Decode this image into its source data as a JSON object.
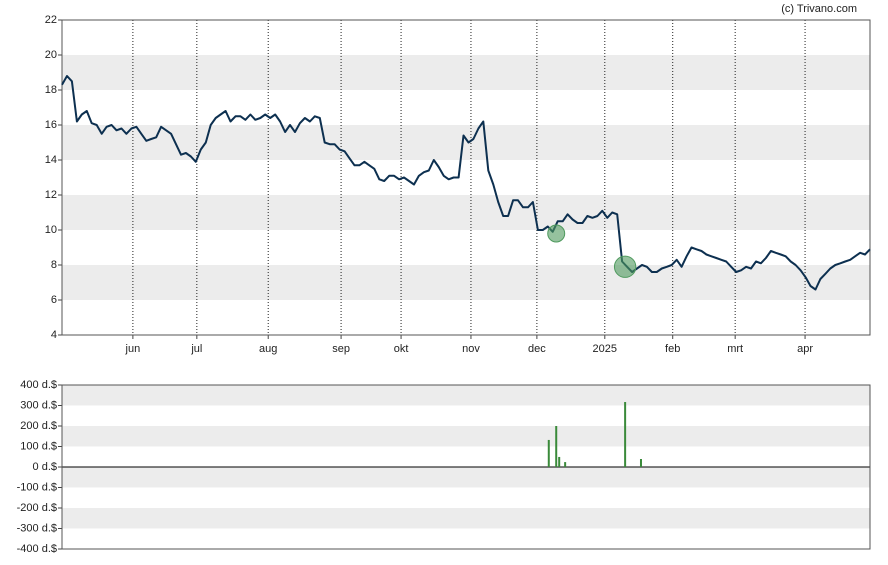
{
  "credit": "(c) Trivano.com",
  "chart_data": [
    {
      "type": "line",
      "color": "#0d3050",
      "grid": true,
      "values": [
        18.3,
        18.8,
        18.5,
        16.2,
        16.6,
        16.8,
        16.1,
        16.0,
        15.5,
        15.9,
        16.0,
        15.7,
        15.8,
        15.5,
        15.8,
        15.9,
        15.5,
        15.1,
        15.2,
        15.3,
        15.9,
        15.7,
        15.5,
        14.9,
        14.3,
        14.4,
        14.2,
        13.9,
        14.6,
        15.0,
        16.0,
        16.4,
        16.6,
        16.8,
        16.2,
        16.5,
        16.5,
        16.3,
        16.6,
        16.3,
        16.4,
        16.6,
        16.4,
        16.6,
        16.2,
        15.6,
        16.0,
        15.6,
        16.1,
        16.4,
        16.2,
        16.5,
        16.4,
        15.0,
        14.9,
        14.9,
        14.6,
        14.5,
        14.1,
        13.7,
        13.7,
        13.9,
        13.7,
        13.5,
        12.9,
        12.8,
        13.1,
        13.1,
        12.9,
        13.0,
        12.8,
        12.6,
        13.1,
        13.3,
        13.4,
        14.0,
        13.6,
        13.1,
        12.9,
        13.0,
        13.0,
        15.4,
        15.0,
        15.2,
        15.8,
        16.2,
        13.4,
        12.6,
        11.6,
        10.8,
        10.8,
        11.7,
        11.7,
        11.3,
        11.3,
        11.6,
        10.0,
        10.0,
        10.2,
        9.9,
        10.5,
        10.5,
        10.9,
        10.6,
        10.4,
        10.4,
        10.8,
        10.7,
        10.8,
        11.1,
        10.7,
        11.0,
        10.9,
        8.2,
        7.9,
        7.6,
        7.8,
        8.0,
        7.9,
        7.6,
        7.6,
        7.8,
        7.9,
        8.0,
        8.3,
        7.9,
        8.5,
        9.0,
        8.9,
        8.8,
        8.6,
        8.5,
        8.4,
        8.3,
        8.2,
        7.9,
        7.6,
        7.7,
        7.9,
        7.8,
        8.2,
        8.1,
        8.4,
        8.8,
        8.7,
        8.6,
        8.5,
        8.2,
        8.0,
        7.7,
        7.3,
        6.8,
        6.6,
        7.2,
        7.5,
        7.8,
        8.0,
        8.1,
        8.2,
        8.3,
        8.5,
        8.7,
        8.6,
        8.9
      ],
      "xlim": [
        0,
        163
      ],
      "xticks": [
        {
          "value": 14.3,
          "label": "jun"
        },
        {
          "value": 27.2,
          "label": "jul"
        },
        {
          "value": 41.6,
          "label": "aug"
        },
        {
          "value": 56.3,
          "label": "sep"
        },
        {
          "value": 68.4,
          "label": "okt"
        },
        {
          "value": 82.5,
          "label": "nov"
        },
        {
          "value": 95.8,
          "label": "dec"
        },
        {
          "value": 109.5,
          "label": "2025"
        },
        {
          "value": 123.2,
          "label": "feb"
        },
        {
          "value": 135.8,
          "label": "mrt"
        },
        {
          "value": 149.9,
          "label": "apr"
        }
      ],
      "ylim": [
        4,
        22
      ],
      "yticks": [
        4,
        6,
        8,
        10,
        12,
        14,
        16,
        18,
        20,
        22
      ],
      "markers": [
        {
          "x": 99.7,
          "y": 9.8,
          "size": 200
        },
        {
          "x": 113.6,
          "y": 7.9,
          "size": 317
        }
      ],
      "marker_color": "#4f9a5e"
    },
    {
      "type": "bar",
      "color": "#3a8a3a",
      "x": [
        98.2,
        99.7,
        100.3,
        101.5,
        113.6,
        116.8
      ],
      "values": [
        132,
        200,
        49,
        24,
        317,
        39
      ],
      "xlim": [
        0,
        163
      ],
      "ylim": [
        -400,
        400
      ],
      "yticks": [
        {
          "value": 400,
          "label": "400 d.$"
        },
        {
          "value": 300,
          "label": "300 d.$"
        },
        {
          "value": 200,
          "label": "200 d.$"
        },
        {
          "value": 100,
          "label": "100 d.$"
        },
        {
          "value": 0,
          "label": "0 d.$"
        },
        {
          "value": -100,
          "label": "-100 d.$"
        },
        {
          "value": -200,
          "label": "-200 d.$"
        },
        {
          "value": -300,
          "label": "-300 d.$"
        },
        {
          "value": -400,
          "label": "-400 d.$"
        }
      ]
    }
  ]
}
